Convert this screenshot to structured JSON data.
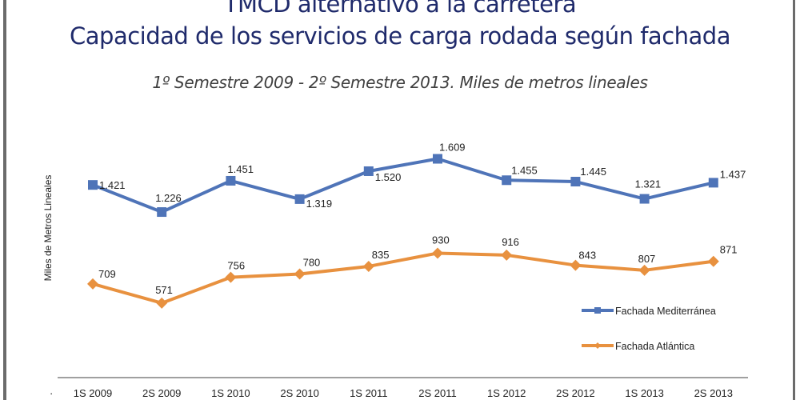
{
  "chart_data": {
    "type": "line",
    "title": "TMCD alternativo a la carretera",
    "title_line2": "Capacidad de los servicios de carga rodada según fachada",
    "subtitle": "1º Semestre 2009 - 2º Semestre 2013. Miles de metros lineales",
    "xlabel": "",
    "ylabel": "Miles de Metros Lineales",
    "categories": [
      "1S 2009",
      "2S 2009",
      "1S 2010",
      "2S 2010",
      "1S 2011",
      "2S 2011",
      "1S 2012",
      "2S 2012",
      "1S 2013",
      "2S 2013"
    ],
    "series": [
      {
        "name": "Fachada Mediterránea",
        "color": "#4f74b8",
        "marker": "square",
        "values": [
          1421,
          1226,
          1451,
          1319,
          1520,
          1609,
          1455,
          1445,
          1321,
          1437
        ],
        "labels": [
          "1.421",
          "1.226",
          "1.451",
          "1.319",
          "1.520",
          "1.609",
          "1.455",
          "1.445",
          "1.321",
          "1.437"
        ]
      },
      {
        "name": "Fachada Atlántica",
        "color": "#e8913f",
        "marker": "diamond",
        "values": [
          709,
          571,
          756,
          780,
          835,
          930,
          916,
          843,
          807,
          871
        ],
        "labels": [
          "709",
          "571",
          "756",
          "780",
          "835",
          "930",
          "916",
          "843",
          "807",
          "871"
        ]
      }
    ],
    "ylim": [
      0,
      1700
    ],
    "grid": false,
    "y_ticks_visible": false,
    "legend": "right"
  }
}
